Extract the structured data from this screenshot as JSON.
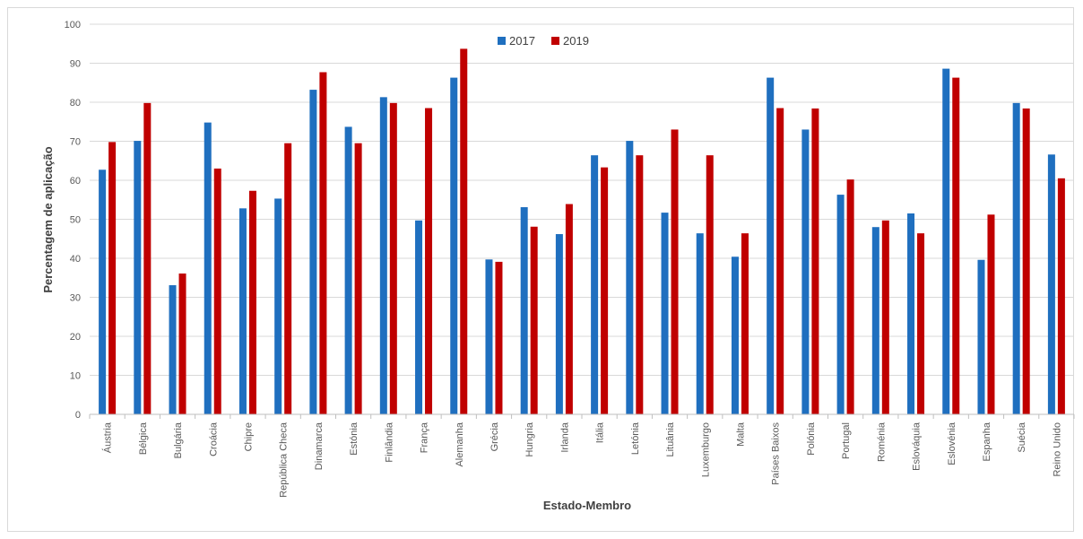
{
  "chart_data": {
    "type": "bar",
    "title": "",
    "xlabel": "Estado-Membro",
    "ylabel": "Percentagem de aplicação",
    "ylim": [
      0,
      100
    ],
    "yticks": [
      0,
      10,
      20,
      30,
      40,
      50,
      60,
      70,
      80,
      90,
      100
    ],
    "grid": true,
    "legend_position": "top-center",
    "categories": [
      "Áustria",
      "Bélgica",
      "Bulgária",
      "Croácia",
      "Chipre",
      "República Checa",
      "Dinamarca",
      "Estónia",
      "Finlândia",
      "França",
      "Alemanha",
      "Grécia",
      "Hungria",
      "Irlanda",
      "Itália",
      "Letónia",
      "Lituânia",
      "Luxemburgo",
      "Malta",
      "Países Baixos",
      "Polónia",
      "Portugal",
      "Roménia",
      "Eslováquia",
      "Eslovénia",
      "Espanha",
      "Suécia",
      "Reino Unido"
    ],
    "series": [
      {
        "name": "2017",
        "color": "#1f6fbf",
        "values": [
          62.7,
          70.1,
          33.1,
          74.8,
          52.8,
          55.3,
          83.2,
          73.7,
          81.3,
          49.7,
          86.3,
          39.7,
          53.1,
          46.2,
          66.4,
          70.1,
          51.7,
          46.4,
          40.4,
          86.3,
          73.0,
          56.3,
          48.0,
          51.5,
          88.6,
          39.6,
          79.8,
          66.6
        ]
      },
      {
        "name": "2019",
        "color": "#c00000",
        "values": [
          69.8,
          79.8,
          36.1,
          63.0,
          57.3,
          69.5,
          87.7,
          69.5,
          79.8,
          78.5,
          93.7,
          39.1,
          48.1,
          53.9,
          63.3,
          66.4,
          73.0,
          66.4,
          46.4,
          78.5,
          78.4,
          60.2,
          49.7,
          46.4,
          86.3,
          51.2,
          78.4,
          60.5
        ]
      }
    ]
  }
}
